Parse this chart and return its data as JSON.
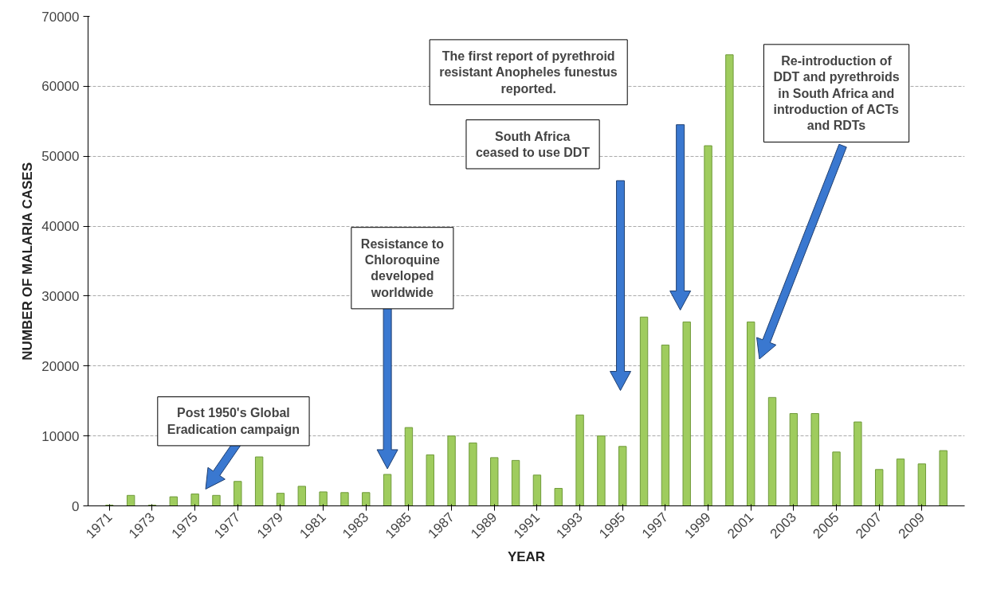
{
  "chart_data": {
    "type": "bar",
    "xlabel": "YEAR",
    "ylabel": "NUMBER OF MALARIA CASES",
    "x": [
      1971,
      1972,
      1973,
      1974,
      1975,
      1976,
      1977,
      1978,
      1979,
      1980,
      1981,
      1982,
      1983,
      1984,
      1985,
      1986,
      1987,
      1988,
      1989,
      1990,
      1991,
      1992,
      1993,
      1994,
      1995,
      1996,
      1997,
      1998,
      1999,
      2000,
      2001,
      2002,
      2003,
      2004,
      2005,
      2006,
      2007,
      2008,
      2009,
      2010
    ],
    "values": [
      100,
      1500,
      100,
      1300,
      1700,
      1500,
      3500,
      7000,
      1800,
      2800,
      2000,
      1900,
      1900,
      4500,
      11200,
      7300,
      10000,
      9000,
      6900,
      6500,
      4400,
      2500,
      13000,
      10000,
      8500,
      27000,
      23000,
      26300,
      51500,
      64500,
      26300,
      15500,
      13200,
      13200,
      7700,
      12000,
      5200,
      6700,
      6000,
      7900
    ],
    "color": "#9fcc5e",
    "xlim": [
      1970,
      2011
    ],
    "xticks": [
      1971,
      1973,
      1975,
      1977,
      1979,
      1981,
      1983,
      1985,
      1987,
      1989,
      1991,
      1993,
      1995,
      1997,
      1999,
      2001,
      2003,
      2005,
      2007,
      2009
    ],
    "ylim": [
      0,
      70000
    ],
    "yticks": [
      0,
      10000,
      20000,
      30000,
      40000,
      50000,
      60000,
      70000
    ],
    "grid": "y",
    "annotations": [
      "Post 1950's Global Eradication campaign",
      "Resistance to Chloroquine developed worldwide",
      "South Africa ceased to use DDT",
      "The first report of pyrethroid resistant Anopheles funestus reported.",
      "Re-introduction of DDT and pyrethroids in South Africa and introduction of ACTs and RDTs"
    ]
  }
}
